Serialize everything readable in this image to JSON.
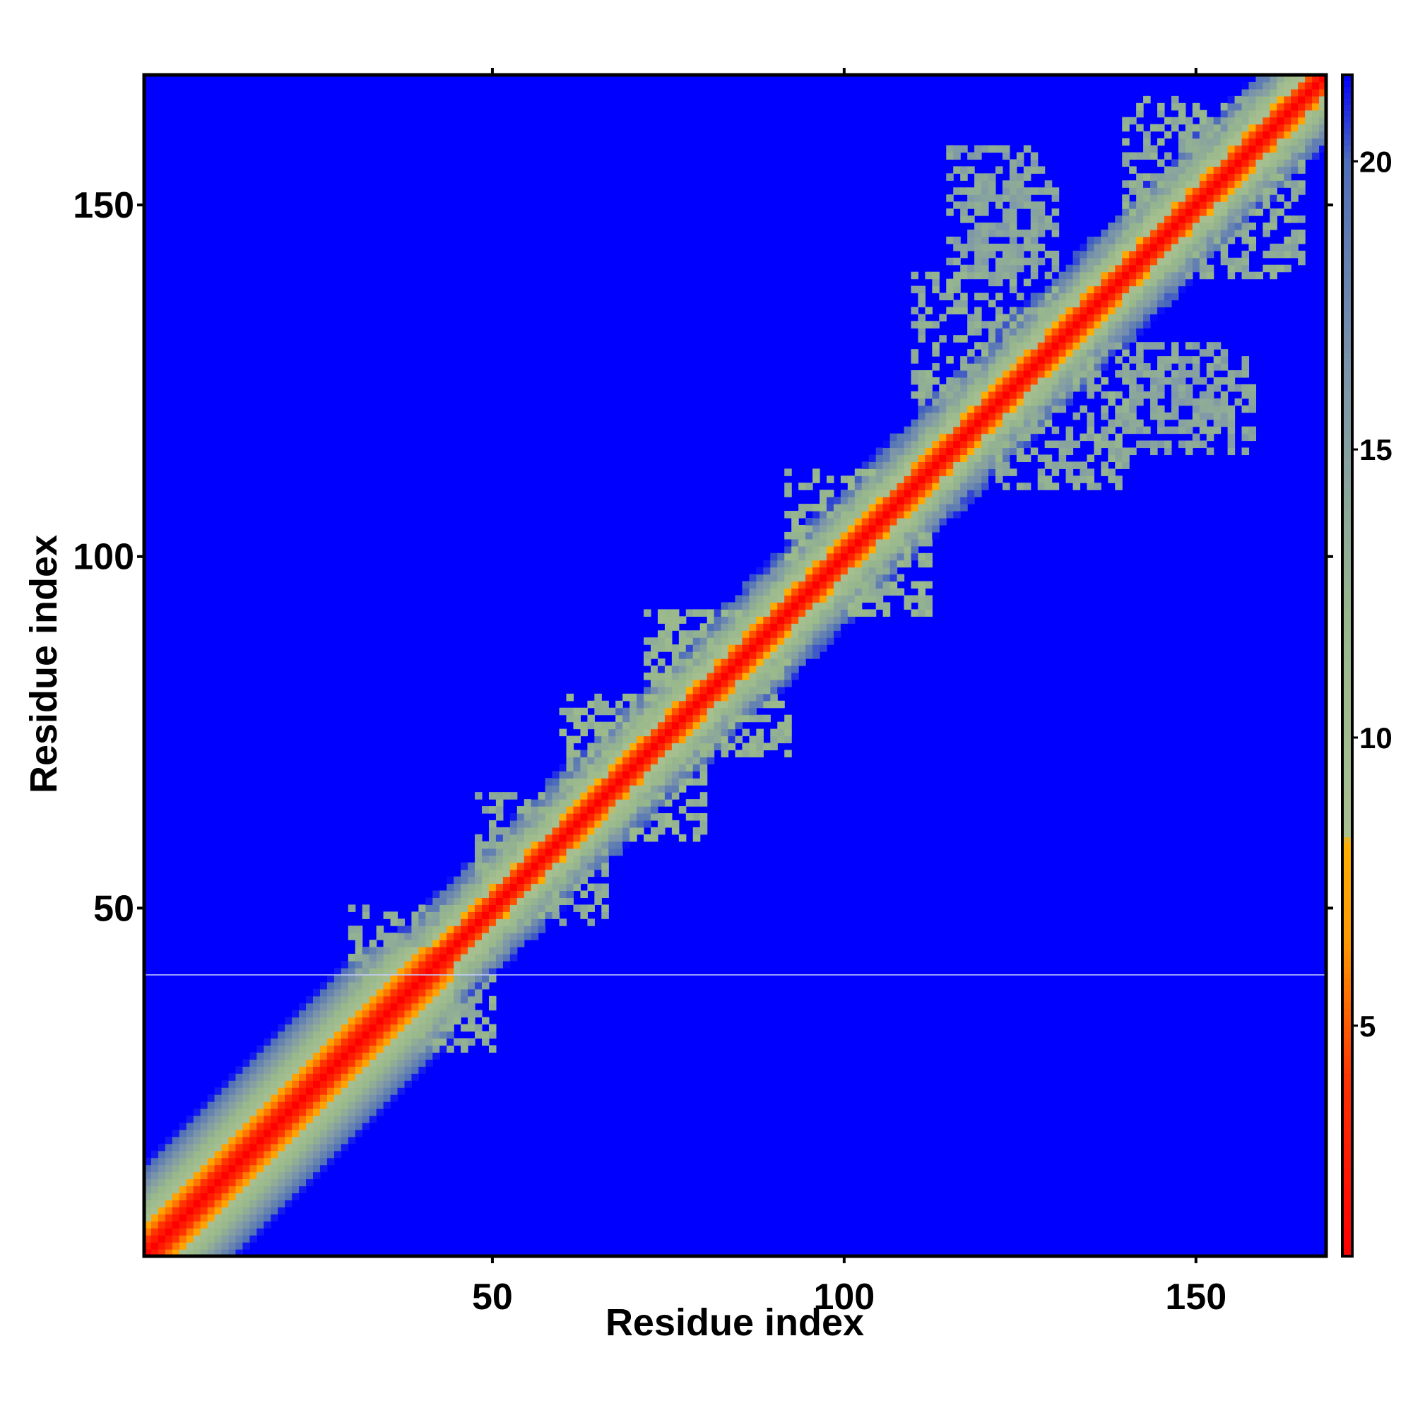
{
  "chart_data": {
    "type": "heatmap",
    "title": "",
    "xlabel": "Residue index",
    "ylabel": "Residue index",
    "xlim": [
      1,
      168
    ],
    "ylim": [
      1,
      168
    ],
    "x_ticks": [
      50,
      100,
      150
    ],
    "y_ticks": [
      50,
      100,
      150
    ],
    "colorbar": {
      "range": [
        1,
        21.5
      ],
      "ticks": [
        5,
        10,
        15,
        20
      ],
      "stops": [
        {
          "value": 1,
          "color": "#ff0000"
        },
        {
          "value": 4,
          "color": "#ff3000"
        },
        {
          "value": 6.5,
          "color": "#ff9a00"
        },
        {
          "value": 8.2,
          "color": "#ffb000"
        },
        {
          "value": 8.3,
          "color": "#a8c090"
        },
        {
          "value": 12,
          "color": "#98b88c"
        },
        {
          "value": 16,
          "color": "#7f98a8"
        },
        {
          "value": 20,
          "color": "#4f6fb8"
        },
        {
          "value": 21.5,
          "color": "#0000ff"
        }
      ]
    },
    "description_values": {
      "max_distance": 21.5,
      "diagonal_value": 1,
      "contact_regions": [
        {
          "i": [
            38,
            50
          ],
          "j": [
            30,
            44
          ],
          "level": 12
        },
        {
          "i": [
            54,
            66
          ],
          "j": [
            48,
            62
          ],
          "level": 12
        },
        {
          "i": [
            66,
            80
          ],
          "j": [
            60,
            74
          ],
          "level": 11
        },
        {
          "i": [
            80,
            92
          ],
          "j": [
            72,
            85
          ],
          "level": 11
        },
        {
          "i": [
            100,
            112
          ],
          "j": [
            92,
            104
          ],
          "level": 11
        },
        {
          "i": [
            122,
            140
          ],
          "j": [
            110,
            130
          ],
          "level": 12
        },
        {
          "i": [
            145,
            165
          ],
          "j": [
            140,
            160
          ],
          "level": 12
        },
        {
          "i": [
            140,
            158
          ],
          "j": [
            115,
            128
          ],
          "level": 13
        },
        {
          "i": [
            118,
            130
          ],
          "j": [
            140,
            155
          ],
          "level": 13
        }
      ]
    }
  }
}
